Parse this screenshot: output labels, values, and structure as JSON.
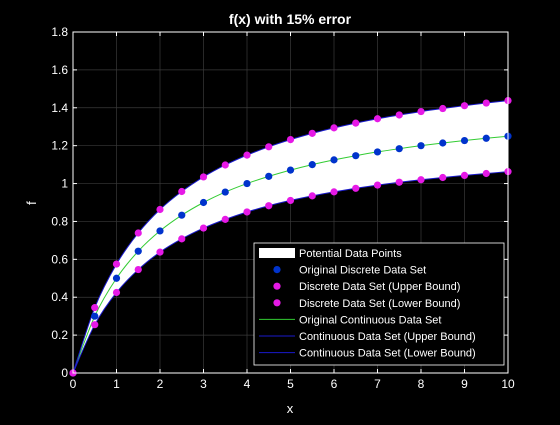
{
  "chart_data": {
    "type": "line",
    "title": "f(x) with 15% error",
    "xlabel": "x",
    "ylabel": "f",
    "xlim": [
      0,
      10
    ],
    "ylim": [
      0,
      1.8
    ],
    "xticks": [
      0,
      1,
      2,
      3,
      4,
      5,
      6,
      7,
      8,
      9,
      10
    ],
    "yticks": [
      0,
      0.2,
      0.4,
      0.6,
      0.8,
      1,
      1.2,
      1.4,
      1.6,
      1.8
    ],
    "xtick_labels": [
      "0",
      "1",
      "2",
      "3",
      "4",
      "5",
      "6",
      "7",
      "8",
      "9",
      "10"
    ],
    "ytick_labels": [
      "0",
      "0.2",
      "0.4",
      "0.6",
      "0.8",
      "1",
      "1.2",
      "1.4",
      "1.6",
      "1.8"
    ],
    "grid": true,
    "legend_position": "bottom-right",
    "x": [
      0,
      0.5,
      1,
      1.5,
      2,
      2.5,
      3,
      3.5,
      4,
      4.5,
      5,
      5.5,
      6,
      6.5,
      7,
      7.5,
      8,
      8.5,
      9,
      9.5,
      10
    ],
    "series": [
      {
        "name": "Potential Data Points",
        "kind": "band",
        "color": "#ffffff",
        "upper": [
          0,
          0.345,
          0.575,
          0.739,
          0.863,
          0.958,
          1.035,
          1.098,
          1.15,
          1.194,
          1.232,
          1.265,
          1.294,
          1.319,
          1.342,
          1.362,
          1.38,
          1.396,
          1.411,
          1.425,
          1.438
        ],
        "lower": [
          0,
          0.255,
          0.425,
          0.546,
          0.638,
          0.708,
          0.765,
          0.811,
          0.85,
          0.883,
          0.911,
          0.935,
          0.956,
          0.975,
          0.992,
          1.007,
          1.02,
          1.032,
          1.043,
          1.053,
          1.063
        ]
      },
      {
        "name": "Original Discrete Data Set",
        "kind": "markers",
        "color": "#0033cc",
        "values": [
          0,
          0.3,
          0.5,
          0.643,
          0.75,
          0.833,
          0.9,
          0.955,
          1.0,
          1.038,
          1.071,
          1.1,
          1.125,
          1.147,
          1.167,
          1.184,
          1.2,
          1.214,
          1.227,
          1.239,
          1.25
        ]
      },
      {
        "name": "Discrete Data Set (Upper Bound)",
        "kind": "markers",
        "color": "#e619e6",
        "values": [
          0,
          0.345,
          0.575,
          0.739,
          0.863,
          0.958,
          1.035,
          1.098,
          1.15,
          1.194,
          1.232,
          1.265,
          1.294,
          1.319,
          1.342,
          1.362,
          1.38,
          1.396,
          1.411,
          1.425,
          1.438
        ]
      },
      {
        "name": "Discrete Data Set (Lower Bound)",
        "kind": "markers",
        "color": "#e619e6",
        "values": [
          0,
          0.255,
          0.425,
          0.546,
          0.638,
          0.708,
          0.765,
          0.811,
          0.85,
          0.883,
          0.911,
          0.935,
          0.956,
          0.975,
          0.992,
          1.007,
          1.02,
          1.032,
          1.043,
          1.053,
          1.063
        ]
      },
      {
        "name": "Original Continuous Data Set",
        "kind": "line",
        "color": "#33cc33",
        "values": [
          0,
          0.3,
          0.5,
          0.643,
          0.75,
          0.833,
          0.9,
          0.955,
          1.0,
          1.038,
          1.071,
          1.1,
          1.125,
          1.147,
          1.167,
          1.184,
          1.2,
          1.214,
          1.227,
          1.239,
          1.25
        ]
      },
      {
        "name": "Continuous Data Set (Upper Bound)",
        "kind": "line",
        "color": "#1a1acc",
        "values": [
          0,
          0.345,
          0.575,
          0.739,
          0.863,
          0.958,
          1.035,
          1.098,
          1.15,
          1.194,
          1.232,
          1.265,
          1.294,
          1.319,
          1.342,
          1.362,
          1.38,
          1.396,
          1.411,
          1.425,
          1.438
        ]
      },
      {
        "name": "Continuous Data Set (Lower Bound)",
        "kind": "line",
        "color": "#1a1acc",
        "values": [
          0,
          0.255,
          0.425,
          0.546,
          0.638,
          0.708,
          0.765,
          0.811,
          0.85,
          0.883,
          0.911,
          0.935,
          0.956,
          0.975,
          0.992,
          1.007,
          1.02,
          1.032,
          1.043,
          1.053,
          1.063
        ]
      }
    ],
    "legend": [
      "Potential Data Points",
      "Original Discrete Data Set",
      "Discrete Data Set (Upper Bound)",
      "Discrete Data Set (Lower Bound)",
      "Original Continuous Data Set",
      "Continuous Data Set (Upper Bound)",
      "Continuous Data Set (Lower Bound)"
    ],
    "colors": {
      "background": "#000000",
      "axes": "#ffffff",
      "grid": "#3a3a3a",
      "legend_border": "#ffffff",
      "legend_background": "#000000"
    }
  }
}
